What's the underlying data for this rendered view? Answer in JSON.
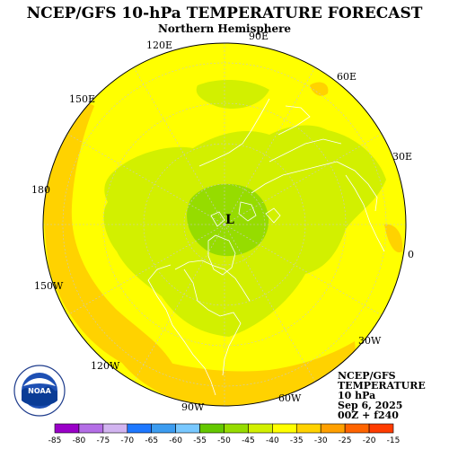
{
  "title": "NCEP/GFS 10-hPa TEMPERATURE FORECAST",
  "subtitle": "Northern Hemisphere",
  "longitude_labels": {
    "lon_90e": "90E",
    "lon_120e": "120E",
    "lon_60e": "60E",
    "lon_150e": "150E",
    "lon_30e": "30E",
    "lon_180": "180",
    "lon_0": "0",
    "lon_150w": "150W",
    "lon_30w": "30W",
    "lon_120w": "120W",
    "lon_90w": "90W",
    "lon_60w": "60W"
  },
  "low_marker": "L",
  "info_box": [
    "NCEP/GFS",
    "TEMPERATURE",
    "10 hPa",
    "Sep 6, 2025",
    "00Z + f240"
  ],
  "logo": {
    "text": "NOAA",
    "ring_text": "NATIONAL OCEANIC AND ATMOSPHERIC ADMINISTRATION · U.S. DEPARTMENT OF COMMERCE"
  },
  "colorbar": {
    "labels": [
      "-85",
      "-80",
      "-75",
      "-70",
      "-65",
      "-60",
      "-55",
      "-50",
      "-45",
      "-40",
      "-35",
      "-30",
      "-25",
      "-20",
      "-15"
    ],
    "colors": [
      "#9a00c8",
      "#b46ee6",
      "#d2b4f0",
      "#1e78ff",
      "#3c9cf0",
      "#78c8ff",
      "#64c800",
      "#96dc00",
      "#d2f000",
      "#ffff00",
      "#ffd200",
      "#ffa000",
      "#ff6400",
      "#ff3c00"
    ]
  },
  "colors": {
    "field": "#ffff00",
    "cold_field": "#d2f000",
    "colder_field": "#96dc00",
    "warm_field": "#ffd200",
    "border": "#000000",
    "coastline": "#ffffff",
    "grid": "#c8c8c8"
  }
}
